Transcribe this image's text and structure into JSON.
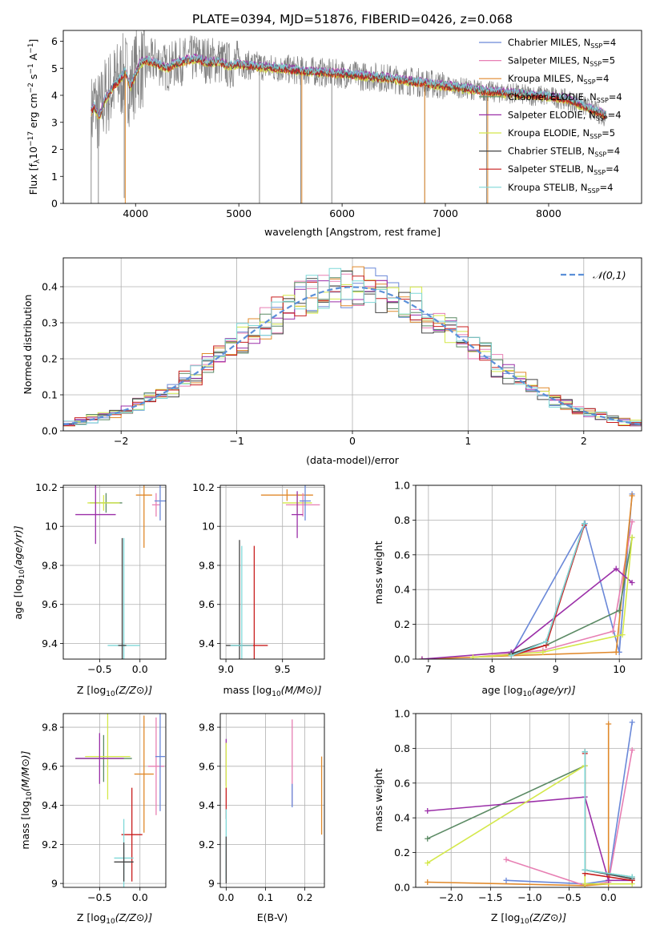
{
  "title": "PLATE=0394, MJD=51876, FIBERID=0426, z=0.068",
  "legend_spectrum": [
    {
      "prefix": "Chabrier MILES, N",
      "sub": "SSP",
      "suffix": "=4",
      "color": "#6a88d8"
    },
    {
      "prefix": "Salpeter MILES, N",
      "sub": "SSP",
      "suffix": "=5",
      "color": "#e77fb3"
    },
    {
      "prefix": "Kroupa MILES, N",
      "sub": "SSP",
      "suffix": "=4",
      "color": "#e0892b"
    },
    {
      "prefix": "Chabrier ELODIE, N",
      "sub": "SSP",
      "suffix": "=4",
      "color": "#5b8a64"
    },
    {
      "prefix": "Salpeter ELODIE, N",
      "sub": "SSP",
      "suffix": "=4",
      "color": "#9b2fa8"
    },
    {
      "prefix": "Kroupa ELODIE, N",
      "sub": "SSP",
      "suffix": "=5",
      "color": "#d4e84a"
    },
    {
      "prefix": "Chabrier STELIB, N",
      "sub": "SSP",
      "suffix": "=4",
      "color": "#444444"
    },
    {
      "prefix": "Salpeter STELIB, N",
      "sub": "SSP",
      "suffix": "=4",
      "color": "#c81e1e"
    },
    {
      "prefix": "Kroupa STELIB, N",
      "sub": "SSP",
      "suffix": "=4",
      "color": "#7fd8d8"
    }
  ],
  "chart_data": [
    {
      "type": "line",
      "title": "PLATE=0394, MJD=51876, FIBERID=0426, z=0.068",
      "xlabel": "wavelength [Angstrom, rest frame]",
      "ylabel_parts": [
        "Flux [f",
        "λ",
        "10",
        "−17",
        " erg cm",
        "−2",
        " s",
        "−1",
        " A",
        "−1",
        "]"
      ],
      "xlim": [
        3300,
        8900
      ],
      "ylim": [
        0,
        6.4
      ],
      "xticks": [
        4000,
        5000,
        6000,
        7000,
        8000
      ],
      "yticks": [
        0,
        1,
        2,
        3,
        4,
        5,
        6
      ],
      "data_color": "#808080",
      "data_x": [
        3570,
        3600,
        3650,
        3700,
        3800,
        3900,
        3950,
        4000,
        4100,
        4200,
        4300,
        4400,
        4500,
        4600,
        4700,
        4800,
        4900,
        5000,
        5100,
        5200,
        5300,
        5400,
        5500,
        5600,
        5700,
        5800,
        5900,
        6000,
        6100,
        6200,
        6300,
        6400,
        6500,
        6600,
        6700,
        6800,
        6900,
        7000,
        7100,
        7200,
        7300,
        7400,
        7500,
        7600,
        7700,
        7800,
        7900,
        8000,
        8100,
        8200,
        8300,
        8400,
        8500,
        8560
      ],
      "data_y": [
        3.2,
        3.7,
        3.3,
        3.9,
        4.4,
        4.8,
        4.3,
        4.9,
        5.1,
        5.3,
        5.0,
        5.2,
        5.3,
        5.4,
        5.3,
        5.3,
        5.1,
        5.2,
        5.1,
        5.1,
        5.0,
        5.0,
        4.95,
        4.9,
        4.9,
        4.85,
        4.8,
        4.8,
        4.75,
        4.7,
        4.7,
        4.65,
        4.6,
        4.55,
        4.5,
        4.45,
        4.4,
        4.35,
        4.3,
        4.25,
        4.2,
        4.15,
        4.1,
        4.1,
        4.05,
        4.0,
        4.0,
        3.95,
        3.9,
        3.8,
        3.7,
        3.5,
        3.3,
        3.2
      ],
      "model_x": [
        3570,
        3600,
        3650,
        3700,
        3750,
        3800,
        3850,
        3900,
        3950,
        4000,
        4050,
        4100,
        4200,
        4300,
        4400,
        4500,
        4600,
        4700,
        4800,
        4900,
        5000,
        5200,
        5400,
        5600,
        5800,
        6000,
        6200,
        6400,
        6600,
        6800,
        7000,
        7200,
        7400,
        7600,
        7800,
        8000,
        8200,
        8400,
        8560
      ],
      "model_y": [
        3.4,
        3.6,
        3.2,
        3.8,
        4.1,
        4.4,
        4.6,
        4.9,
        4.3,
        4.8,
        5.2,
        5.3,
        5.2,
        5.0,
        5.2,
        5.3,
        5.35,
        5.2,
        5.25,
        5.1,
        5.15,
        5.05,
        5.0,
        4.9,
        4.85,
        4.8,
        4.72,
        4.65,
        4.55,
        4.45,
        4.35,
        4.25,
        4.15,
        4.08,
        4.02,
        3.96,
        3.85,
        3.5,
        3.25
      ],
      "series_offsets": [
        0.0,
        0.05,
        -0.05,
        0.03,
        0.08,
        -0.08,
        -0.02,
        -0.04,
        0.06
      ],
      "legend_position": "upper right"
    },
    {
      "type": "bar",
      "xlabel": "(data-model)/error",
      "ylabel": "Normed distribution",
      "xlim": [
        -2.5,
        2.5
      ],
      "ylim": [
        0,
        0.48
      ],
      "xticks": [
        -2,
        -1,
        0,
        1,
        2
      ],
      "xtick_labels": [
        "−2",
        "−1",
        "0",
        "1",
        "2"
      ],
      "yticks": [
        0.0,
        0.1,
        0.2,
        0.3,
        0.4
      ],
      "ytick_labels": [
        "0.0",
        "0.1",
        "0.2",
        "0.3",
        "0.4"
      ],
      "bin_width": 0.1,
      "curve_label": "𝒩(0,1)",
      "curve_color": "#5b8fd8",
      "legend_position": "upper right"
    },
    {
      "type": "scatter",
      "xlabel": "Z [log10(Z/Z⊙)]",
      "ylabel": "age  [log10(age/yr)]",
      "xlim": [
        -0.95,
        0.32
      ],
      "ylim": [
        9.32,
        10.21
      ],
      "xticks": [
        -0.5,
        0.0
      ],
      "xtick_labels": [
        "−0.5",
        "0.0"
      ],
      "yticks": [
        9.4,
        9.6,
        9.8,
        10.0,
        10.2
      ],
      "points": [
        {
          "x": -0.42,
          "y": 10.12,
          "xerr": 0.2,
          "yerr": 0.05,
          "color": "#5b8a64"
        },
        {
          "x": -0.45,
          "y": 10.12,
          "xerr": 0.2,
          "yerr": 0.04,
          "color": "#d4e84a"
        },
        {
          "x": -0.55,
          "y": 10.06,
          "xerr": 0.25,
          "yerr": 0.15,
          "color": "#9b2fa8"
        },
        {
          "x": -0.2,
          "y": 9.39,
          "xerr": 0.2,
          "yerr": 0.55,
          "color": "#7fd8d8"
        },
        {
          "x": -0.22,
          "y": 9.39,
          "xerr": 0.05,
          "yerr": 0.55,
          "color": "#444444"
        },
        {
          "x": 0.05,
          "y": 10.16,
          "xerr": 0.1,
          "yerr": 0.27,
          "color": "#e0892b"
        },
        {
          "x": 0.2,
          "y": 10.11,
          "xerr": 0.05,
          "yerr": 0.06,
          "color": "#e77fb3"
        },
        {
          "x": 0.25,
          "y": 10.13,
          "xerr": 0.07,
          "yerr": 0.1,
          "color": "#6a88d8"
        }
      ]
    },
    {
      "type": "scatter",
      "xlabel": "mass [log10(M/M⊙)]",
      "ylabel": "",
      "xlim": [
        8.95,
        9.87
      ],
      "ylim": [
        9.32,
        10.21
      ],
      "xticks": [
        9.0,
        9.5
      ],
      "xtick_labels": [
        "9.0",
        "9.5"
      ],
      "yticks": [
        9.4,
        9.6,
        9.8,
        10.0,
        10.2
      ],
      "points": [
        {
          "x": 9.54,
          "y": 10.16,
          "xerr": 0.23,
          "yerr": 0.03,
          "color": "#e0892b"
        },
        {
          "x": 9.63,
          "y": 10.12,
          "xerr": 0.13,
          "yerr": 0.05,
          "color": "#d4e84a"
        },
        {
          "x": 9.68,
          "y": 10.11,
          "xerr": 0.15,
          "yerr": 0.06,
          "color": "#e77fb3"
        },
        {
          "x": 9.7,
          "y": 10.13,
          "xerr": 0.05,
          "yerr": 0.1,
          "color": "#6a88d8"
        },
        {
          "x": 9.63,
          "y": 10.06,
          "xerr": 0.05,
          "yerr": 0.12,
          "color": "#9b2fa8"
        },
        {
          "x": 9.12,
          "y": 9.39,
          "xerr": 0.12,
          "yerr": 0.54,
          "color": "#444444"
        },
        {
          "x": 9.25,
          "y": 9.39,
          "xerr": 0.12,
          "yerr": 0.51,
          "color": "#c81e1e"
        },
        {
          "x": 9.14,
          "y": 9.39,
          "xerr": 0.1,
          "yerr": 0.51,
          "color": "#7fd8d8"
        }
      ]
    },
    {
      "type": "line",
      "xlabel": "age  [log10(age/yr)]",
      "ylabel": "mass weight",
      "xlim": [
        6.8,
        10.35
      ],
      "ylim": [
        0,
        1.0
      ],
      "xticks": [
        7,
        8,
        9,
        10
      ],
      "yticks": [
        0.0,
        0.2,
        0.4,
        0.6,
        0.8,
        1.0
      ],
      "ytick_labels": [
        "0.0",
        "0.2",
        "0.4",
        "0.6",
        "0.8",
        "1.0"
      ],
      "series": [
        {
          "color": "#6a88d8",
          "x": [
            8.3,
            9.46,
            10.0,
            10.2
          ],
          "y": [
            0.02,
            0.78,
            0.04,
            0.95
          ]
        },
        {
          "color": "#e77fb3",
          "x": [
            7.7,
            8.8,
            9.9,
            10.2
          ],
          "y": [
            0.01,
            0.05,
            0.16,
            0.79
          ]
        },
        {
          "color": "#e0892b",
          "x": [
            6.9,
            8.3,
            9.95,
            10.2
          ],
          "y": [
            0.0,
            0.02,
            0.04,
            0.94
          ]
        },
        {
          "color": "#5b8a64",
          "x": [
            8.3,
            8.85,
            10.0,
            10.2
          ],
          "y": [
            0.03,
            0.08,
            0.28,
            0.7
          ]
        },
        {
          "color": "#9b2fa8",
          "x": [
            6.9,
            8.3,
            9.95,
            10.2
          ],
          "y": [
            0.0,
            0.04,
            0.52,
            0.44
          ]
        },
        {
          "color": "#d4e84a",
          "x": [
            7.7,
            8.8,
            10.05,
            10.2
          ],
          "y": [
            0.01,
            0.04,
            0.14,
            0.7
          ]
        },
        {
          "color": "#444444",
          "x": [
            8.3,
            8.85,
            9.45
          ],
          "y": [
            0.03,
            0.1,
            0.78
          ]
        },
        {
          "color": "#c81e1e",
          "x": [
            8.3,
            8.85,
            9.45
          ],
          "y": [
            0.02,
            0.08,
            0.77
          ]
        },
        {
          "color": "#7fd8d8",
          "x": [
            8.3,
            8.85,
            9.45
          ],
          "y": [
            0.02,
            0.1,
            0.78
          ]
        }
      ]
    },
    {
      "type": "scatter",
      "xlabel": "Z [log10(Z/Z⊙)]",
      "ylabel": "mass [log10(M/M⊙)]",
      "xlim": [
        -0.95,
        0.32
      ],
      "ylim": [
        8.98,
        9.87
      ],
      "xticks": [
        -0.5,
        0.0
      ],
      "xtick_labels": [
        "−0.5",
        "0.0"
      ],
      "yticks": [
        9.0,
        9.2,
        9.4,
        9.6,
        9.8
      ],
      "points": [
        {
          "x": -0.45,
          "y": 9.64,
          "xerr": 0.35,
          "yerr": 0.12,
          "color": "#5b8a64"
        },
        {
          "x": -0.4,
          "y": 9.65,
          "xerr": 0.28,
          "yerr": 0.22,
          "color": "#d4e84a"
        },
        {
          "x": -0.5,
          "y": 9.64,
          "xerr": 0.3,
          "yerr": 0.13,
          "color": "#9b2fa8"
        },
        {
          "x": -0.1,
          "y": 9.25,
          "xerr": 0.13,
          "yerr": 0.24,
          "color": "#c81e1e"
        },
        {
          "x": -0.2,
          "y": 9.13,
          "xerr": 0.12,
          "yerr": 0.2,
          "color": "#7fd8d8"
        },
        {
          "x": -0.2,
          "y": 9.11,
          "xerr": 0.12,
          "yerr": 0.1,
          "color": "#444444"
        },
        {
          "x": 0.05,
          "y": 9.56,
          "xerr": 0.12,
          "yerr": 0.3,
          "color": "#e0892b"
        },
        {
          "x": 0.2,
          "y": 9.6,
          "xerr": 0.1,
          "yerr": 0.25,
          "color": "#e77fb3"
        },
        {
          "x": 0.25,
          "y": 9.65,
          "xerr": 0.06,
          "yerr": 0.28,
          "color": "#6a88d8"
        }
      ]
    },
    {
      "type": "scatter",
      "xlabel": "E(B-V)",
      "ylabel": "",
      "xlim": [
        -0.015,
        0.25
      ],
      "ylim": [
        8.98,
        9.87
      ],
      "xticks": [
        0.0,
        0.1,
        0.2
      ],
      "xtick_labels": [
        "0.0",
        "0.1",
        "0.2"
      ],
      "yticks": [
        9.0,
        9.2,
        9.4,
        9.6,
        9.8
      ],
      "points": [
        {
          "x": 0.0,
          "y": 9.62,
          "xerr": 0.0,
          "yerr": 0.12,
          "color": "#9b2fa8"
        },
        {
          "x": 0.0,
          "y": 9.6,
          "xerr": 0.0,
          "yerr": 0.12,
          "color": "#d4e84a"
        },
        {
          "x": 0.0,
          "y": 9.41,
          "xerr": 0.0,
          "yerr": 0.08,
          "color": "#c81e1e"
        },
        {
          "x": 0.0,
          "y": 9.2,
          "xerr": 0.0,
          "yerr": 0.18,
          "color": "#7fd8d8"
        },
        {
          "x": 0.0,
          "y": 9.12,
          "xerr": 0.0,
          "yerr": 0.12,
          "color": "#444444"
        },
        {
          "x": 0.168,
          "y": 9.62,
          "xerr": 0.0,
          "yerr": 0.22,
          "color": "#e77fb3"
        },
        {
          "x": 0.168,
          "y": 9.45,
          "xerr": 0.0,
          "yerr": 0.06,
          "color": "#6a88d8"
        },
        {
          "x": 0.243,
          "y": 9.45,
          "xerr": 0.0,
          "yerr": 0.2,
          "color": "#e0892b"
        }
      ]
    },
    {
      "type": "line",
      "xlabel": "Z [log10(Z/Z⊙)]",
      "ylabel": "mass weight",
      "xlim": [
        -2.45,
        0.42
      ],
      "ylim": [
        0,
        1.0
      ],
      "xticks": [
        -2.0,
        -1.5,
        -1.0,
        -0.5,
        0.0
      ],
      "xtick_labels": [
        "−2.0",
        "−1.5",
        "−1.0",
        "−0.5",
        "0.0"
      ],
      "yticks": [
        0.0,
        0.2,
        0.4,
        0.6,
        0.8,
        1.0
      ],
      "ytick_labels": [
        "0.0",
        "0.2",
        "0.4",
        "0.6",
        "0.8",
        "1.0"
      ],
      "series": [
        {
          "color": "#6a88d8",
          "x": [
            -1.3,
            -0.3,
            0.0,
            0.3
          ],
          "y": [
            0.04,
            0.02,
            0.04,
            0.95
          ]
        },
        {
          "color": "#e77fb3",
          "x": [
            -1.3,
            -0.3,
            0.0,
            0.3
          ],
          "y": [
            0.16,
            0.01,
            0.03,
            0.79
          ]
        },
        {
          "color": "#e0892b",
          "x": [
            -2.3,
            -0.3,
            0.0,
            0.0
          ],
          "y": [
            0.03,
            0.01,
            0.02,
            0.94
          ]
        },
        {
          "color": "#5b8a64",
          "x": [
            -2.3,
            -0.3,
            -0.3,
            0.3
          ],
          "y": [
            0.28,
            0.7,
            0.1,
            0.06
          ]
        },
        {
          "color": "#9b2fa8",
          "x": [
            -2.3,
            -0.3,
            0.0,
            0.3
          ],
          "y": [
            0.44,
            0.52,
            0.04,
            0.04
          ]
        },
        {
          "color": "#d4e84a",
          "x": [
            -2.3,
            -0.3,
            -0.3,
            0.3
          ],
          "y": [
            0.14,
            0.7,
            0.02,
            0.02
          ]
        },
        {
          "color": "#444444",
          "x": [
            -0.3,
            -0.3,
            0.3
          ],
          "y": [
            0.78,
            0.1,
            0.05
          ]
        },
        {
          "color": "#c81e1e",
          "x": [
            -0.3,
            -0.3,
            0.3
          ],
          "y": [
            0.77,
            0.08,
            0.04
          ]
        },
        {
          "color": "#7fd8d8",
          "x": [
            -0.3,
            -0.3,
            0.3
          ],
          "y": [
            0.78,
            0.1,
            0.06
          ]
        }
      ]
    }
  ]
}
